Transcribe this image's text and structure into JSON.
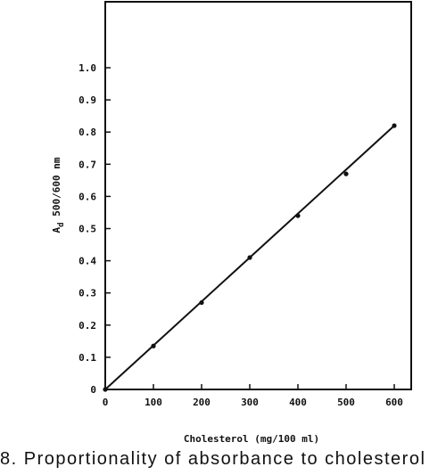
{
  "chart_data": {
    "type": "line",
    "title": "",
    "xlabel": "Cholesterol (mg/100 ml)",
    "ylabel_main": "A",
    "ylabel_sub": "d",
    "ylabel_rest": " 500/600 nm",
    "xlim": [
      0,
      600
    ],
    "ylim": [
      0,
      1.0
    ],
    "x_ticks": [
      "0",
      "100",
      "200",
      "300",
      "400",
      "500",
      "600"
    ],
    "y_ticks": [
      "0",
      "0.1",
      "0.2",
      "0.3",
      "0.4",
      "0.5",
      "0.6",
      "0.7",
      "0.8",
      "0.9",
      "1.0"
    ],
    "grid": false,
    "series": [
      {
        "points": [
          {
            "x": 0,
            "y": 0
          },
          {
            "x": 100,
            "y": 0.135
          },
          {
            "x": 200,
            "y": 0.27
          },
          {
            "x": 300,
            "y": 0.41
          },
          {
            "x": 400,
            "y": 0.54
          },
          {
            "x": 500,
            "y": 0.67
          },
          {
            "x": 600,
            "y": 0.82
          }
        ],
        "fit_line": [
          [
            0,
            0
          ],
          [
            600,
            0.82
          ]
        ]
      }
    ]
  },
  "caption": "8. Proportionality of absorbance to cholesterol"
}
